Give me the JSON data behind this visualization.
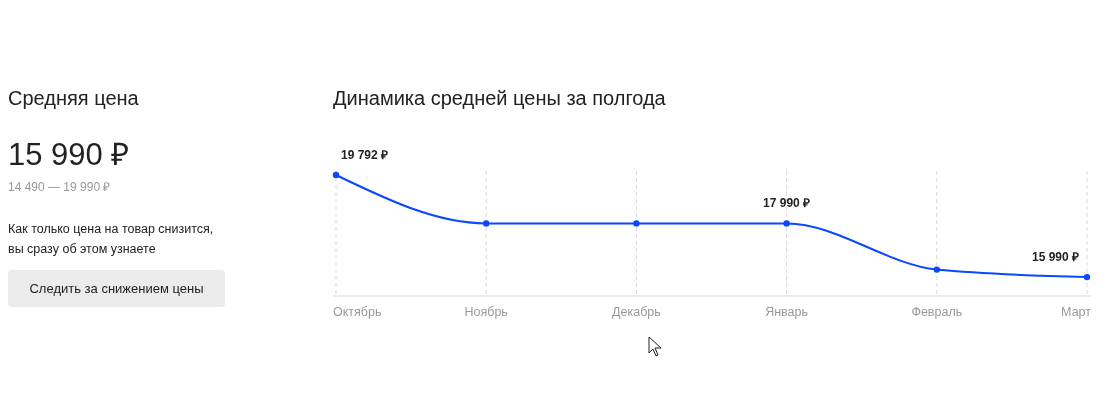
{
  "chart_data": [
    {
      "type": "other",
      "title": "Средняя цена",
      "annotations": [
        "15 990 ₽",
        "14 490 — 19 990 ₽",
        "Как только цена на товар снизится,\nвы сразу об этом узнаете",
        "Следить за снижением цены"
      ]
    },
    {
      "type": "line",
      "title": "Динамика средней цены за полгода",
      "categories": [
        "Октябрь",
        "Ноябрь",
        "Декабрь",
        "Январь",
        "Февраль",
        "Март"
      ],
      "series": [
        {
          "color": "#0a47ff",
          "values": [
            19792,
            17990,
            17990,
            17990,
            16270,
            15990
          ],
          "value_labels": [
            "19 792 ₽",
            null,
            null,
            "17 990 ₽",
            null,
            "15 990 ₽"
          ]
        }
      ],
      "relative": false,
      "marker": "circle",
      "grid": "x"
    }
  ]
}
